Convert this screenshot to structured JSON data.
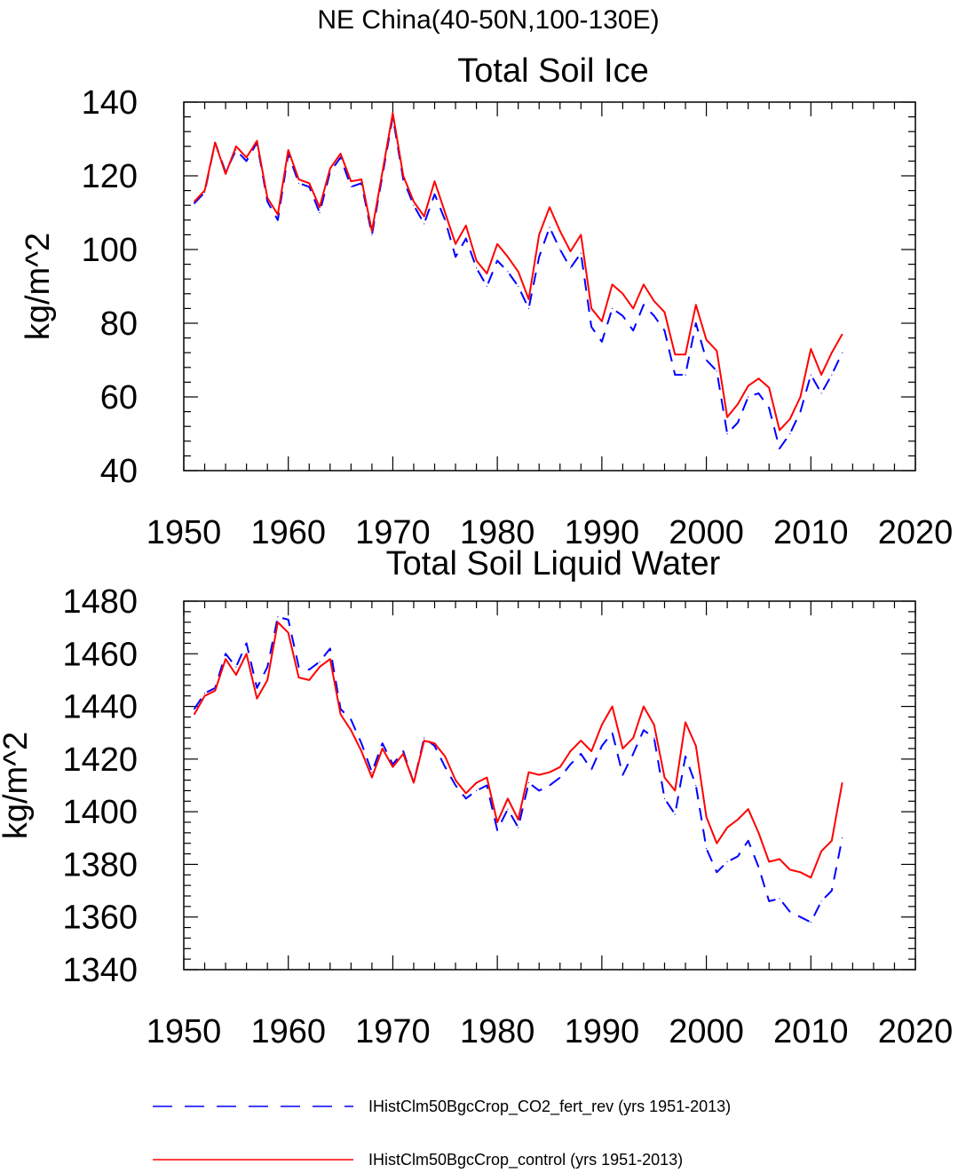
{
  "figure_title": "NE China(40-50N,100-130E)",
  "colors": {
    "co2_fert_rev": "#0000ff",
    "control": "#ff0000",
    "axes": "#000000"
  },
  "legend": [
    {
      "series_key": "co2_fert_rev",
      "label": "IHistClm50BgcCrop_CO2_fert_rev (yrs 1951-2013)",
      "style": "dashed"
    },
    {
      "series_key": "control",
      "label": "IHistClm50BgcCrop_control (yrs 1951-2013)",
      "style": "solid"
    }
  ],
  "chart_data": [
    {
      "type": "line",
      "title": "Total Soil Ice",
      "xlabel": "",
      "ylabel": "kg/m^2",
      "xlim": [
        1950,
        2020
      ],
      "ylim": [
        40,
        140
      ],
      "x_ticks": [
        1950,
        1960,
        1970,
        1980,
        1990,
        2000,
        2010,
        2020
      ],
      "x_tick_labels": [
        "1950",
        "1960",
        "1970",
        "1980",
        "1990",
        "2000",
        "2010",
        "2020"
      ],
      "y_ticks": [
        40,
        60,
        80,
        100,
        120,
        140
      ],
      "y_tick_labels": [
        "40",
        "60",
        "80",
        "100",
        "120",
        "140"
      ],
      "x": [
        1951,
        1952,
        1953,
        1954,
        1955,
        1956,
        1957,
        1958,
        1959,
        1960,
        1961,
        1962,
        1963,
        1964,
        1965,
        1966,
        1967,
        1968,
        1969,
        1970,
        1971,
        1972,
        1973,
        1974,
        1975,
        1976,
        1977,
        1978,
        1979,
        1980,
        1981,
        1982,
        1983,
        1984,
        1985,
        1986,
        1987,
        1988,
        1989,
        1990,
        1991,
        1992,
        1993,
        1994,
        1995,
        1996,
        1997,
        1998,
        1999,
        2000,
        2001,
        2002,
        2003,
        2004,
        2005,
        2006,
        2007,
        2008,
        2009,
        2010,
        2011,
        2012,
        2013
      ],
      "series": [
        {
          "key": "co2_fert_rev",
          "values": [
            112.5,
            115.5,
            129,
            121,
            127,
            124,
            129,
            113,
            108,
            126,
            118,
            117,
            110,
            121,
            125,
            117,
            118,
            104,
            120,
            136,
            119,
            112,
            107,
            115,
            108,
            98,
            103,
            95,
            90,
            97,
            94,
            90,
            84,
            98,
            106,
            100,
            95,
            99,
            79,
            75,
            84,
            82,
            78,
            85,
            82,
            78,
            66,
            66,
            80,
            70,
            67,
            50,
            53,
            60,
            61,
            57,
            46,
            50,
            56,
            66,
            61,
            66,
            72
          ]
        },
        {
          "key": "control",
          "values": [
            113,
            116,
            129,
            120.5,
            128,
            125,
            129.5,
            114,
            109.5,
            127,
            119,
            118,
            111.5,
            122,
            126,
            118.5,
            119,
            105,
            121,
            137,
            120,
            113,
            109,
            118.5,
            110,
            101.5,
            106.5,
            97,
            93.5,
            101.5,
            98,
            94,
            86.5,
            104,
            111.5,
            105,
            99.5,
            104,
            84,
            80.5,
            90.5,
            88,
            84,
            90.5,
            86,
            83,
            71.5,
            71.5,
            85,
            75.5,
            72.5,
            54.5,
            58,
            63,
            65,
            62.5,
            51,
            54,
            60,
            73,
            66,
            72,
            77
          ]
        }
      ]
    },
    {
      "type": "line",
      "title": "Total Soil Liquid Water",
      "xlabel": "",
      "ylabel": "kg/m^2",
      "xlim": [
        1950,
        2020
      ],
      "ylim": [
        1340,
        1480
      ],
      "x_ticks": [
        1950,
        1960,
        1970,
        1980,
        1990,
        2000,
        2010,
        2020
      ],
      "x_tick_labels": [
        "1950",
        "1960",
        "1970",
        "1980",
        "1990",
        "2000",
        "2010",
        "2020"
      ],
      "y_ticks": [
        1340,
        1360,
        1380,
        1400,
        1420,
        1440,
        1460,
        1480
      ],
      "y_tick_labels": [
        "1340",
        "1360",
        "1380",
        "1400",
        "1420",
        "1440",
        "1460",
        "1480"
      ],
      "x": [
        1951,
        1952,
        1953,
        1954,
        1955,
        1956,
        1957,
        1958,
        1959,
        1960,
        1961,
        1962,
        1963,
        1964,
        1965,
        1966,
        1967,
        1968,
        1969,
        1970,
        1971,
        1972,
        1973,
        1974,
        1975,
        1976,
        1977,
        1978,
        1979,
        1980,
        1981,
        1982,
        1983,
        1984,
        1985,
        1986,
        1987,
        1988,
        1989,
        1990,
        1991,
        1992,
        1993,
        1994,
        1995,
        1996,
        1997,
        1998,
        1999,
        2000,
        2001,
        2002,
        2003,
        2004,
        2005,
        2006,
        2007,
        2008,
        2009,
        2010,
        2011,
        2012,
        2013
      ],
      "series": [
        {
          "key": "co2_fert_rev",
          "values": [
            1439,
            1445,
            1447,
            1460,
            1455,
            1464,
            1447,
            1455,
            1474,
            1473,
            1455,
            1454,
            1457,
            1462,
            1439,
            1435,
            1426,
            1415,
            1426,
            1418,
            1423,
            1411,
            1428,
            1425,
            1417,
            1410,
            1405,
            1408,
            1410,
            1393,
            1401,
            1394,
            1411,
            1408,
            1410,
            1413,
            1418,
            1422,
            1416,
            1425,
            1430,
            1414,
            1422,
            1431,
            1428,
            1405,
            1399,
            1421,
            1410,
            1386,
            1377,
            1381,
            1383,
            1389,
            1379,
            1366,
            1367,
            1362,
            1360,
            1358,
            1366,
            1370,
            1390
          ]
        },
        {
          "key": "control",
          "values": [
            1437,
            1444,
            1446,
            1458,
            1452,
            1460,
            1443,
            1450,
            1472,
            1468,
            1451,
            1450,
            1455,
            1458,
            1437,
            1431,
            1423,
            1413,
            1424,
            1417,
            1422,
            1411,
            1427,
            1426,
            1421,
            1412,
            1407,
            1411,
            1413,
            1396,
            1405,
            1397,
            1415,
            1414,
            1415,
            1417,
            1423,
            1427,
            1423,
            1433,
            1440,
            1424,
            1428,
            1440,
            1433,
            1413,
            1408,
            1434,
            1425,
            1398,
            1388,
            1394,
            1397,
            1401,
            1392,
            1381,
            1382,
            1378,
            1377,
            1375,
            1385,
            1389,
            1411
          ]
        }
      ]
    }
  ]
}
